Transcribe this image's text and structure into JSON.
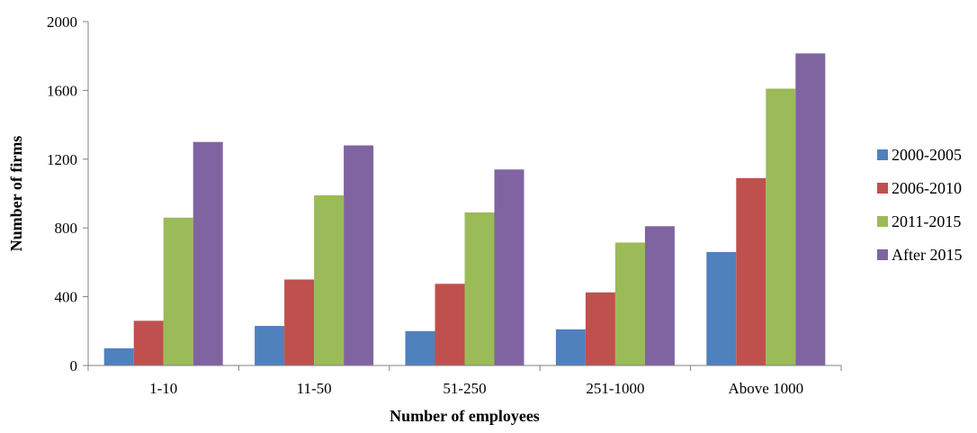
{
  "chart_data": {
    "type": "bar",
    "title": "",
    "xlabel": "Number of employees",
    "ylabel": "Number of firms",
    "ylim": [
      0,
      2000
    ],
    "yticks": [
      0,
      400,
      800,
      1200,
      1600,
      2000
    ],
    "grid": false,
    "legend_position": "right",
    "categories": [
      "1-10",
      "11-50",
      "51-250",
      "251-1000",
      "Above 1000"
    ],
    "series": [
      {
        "name": "2000-2005",
        "color": "#4F81BD",
        "values": [
          100,
          230,
          200,
          210,
          660
        ]
      },
      {
        "name": "2006-2010",
        "color": "#C0504D",
        "values": [
          260,
          500,
          475,
          425,
          1090
        ]
      },
      {
        "name": "2011-2015",
        "color": "#9BBB59",
        "values": [
          860,
          990,
          890,
          715,
          1610
        ]
      },
      {
        "name": "After 2015",
        "color": "#8064A2",
        "values": [
          1300,
          1280,
          1140,
          810,
          1815
        ]
      }
    ]
  }
}
